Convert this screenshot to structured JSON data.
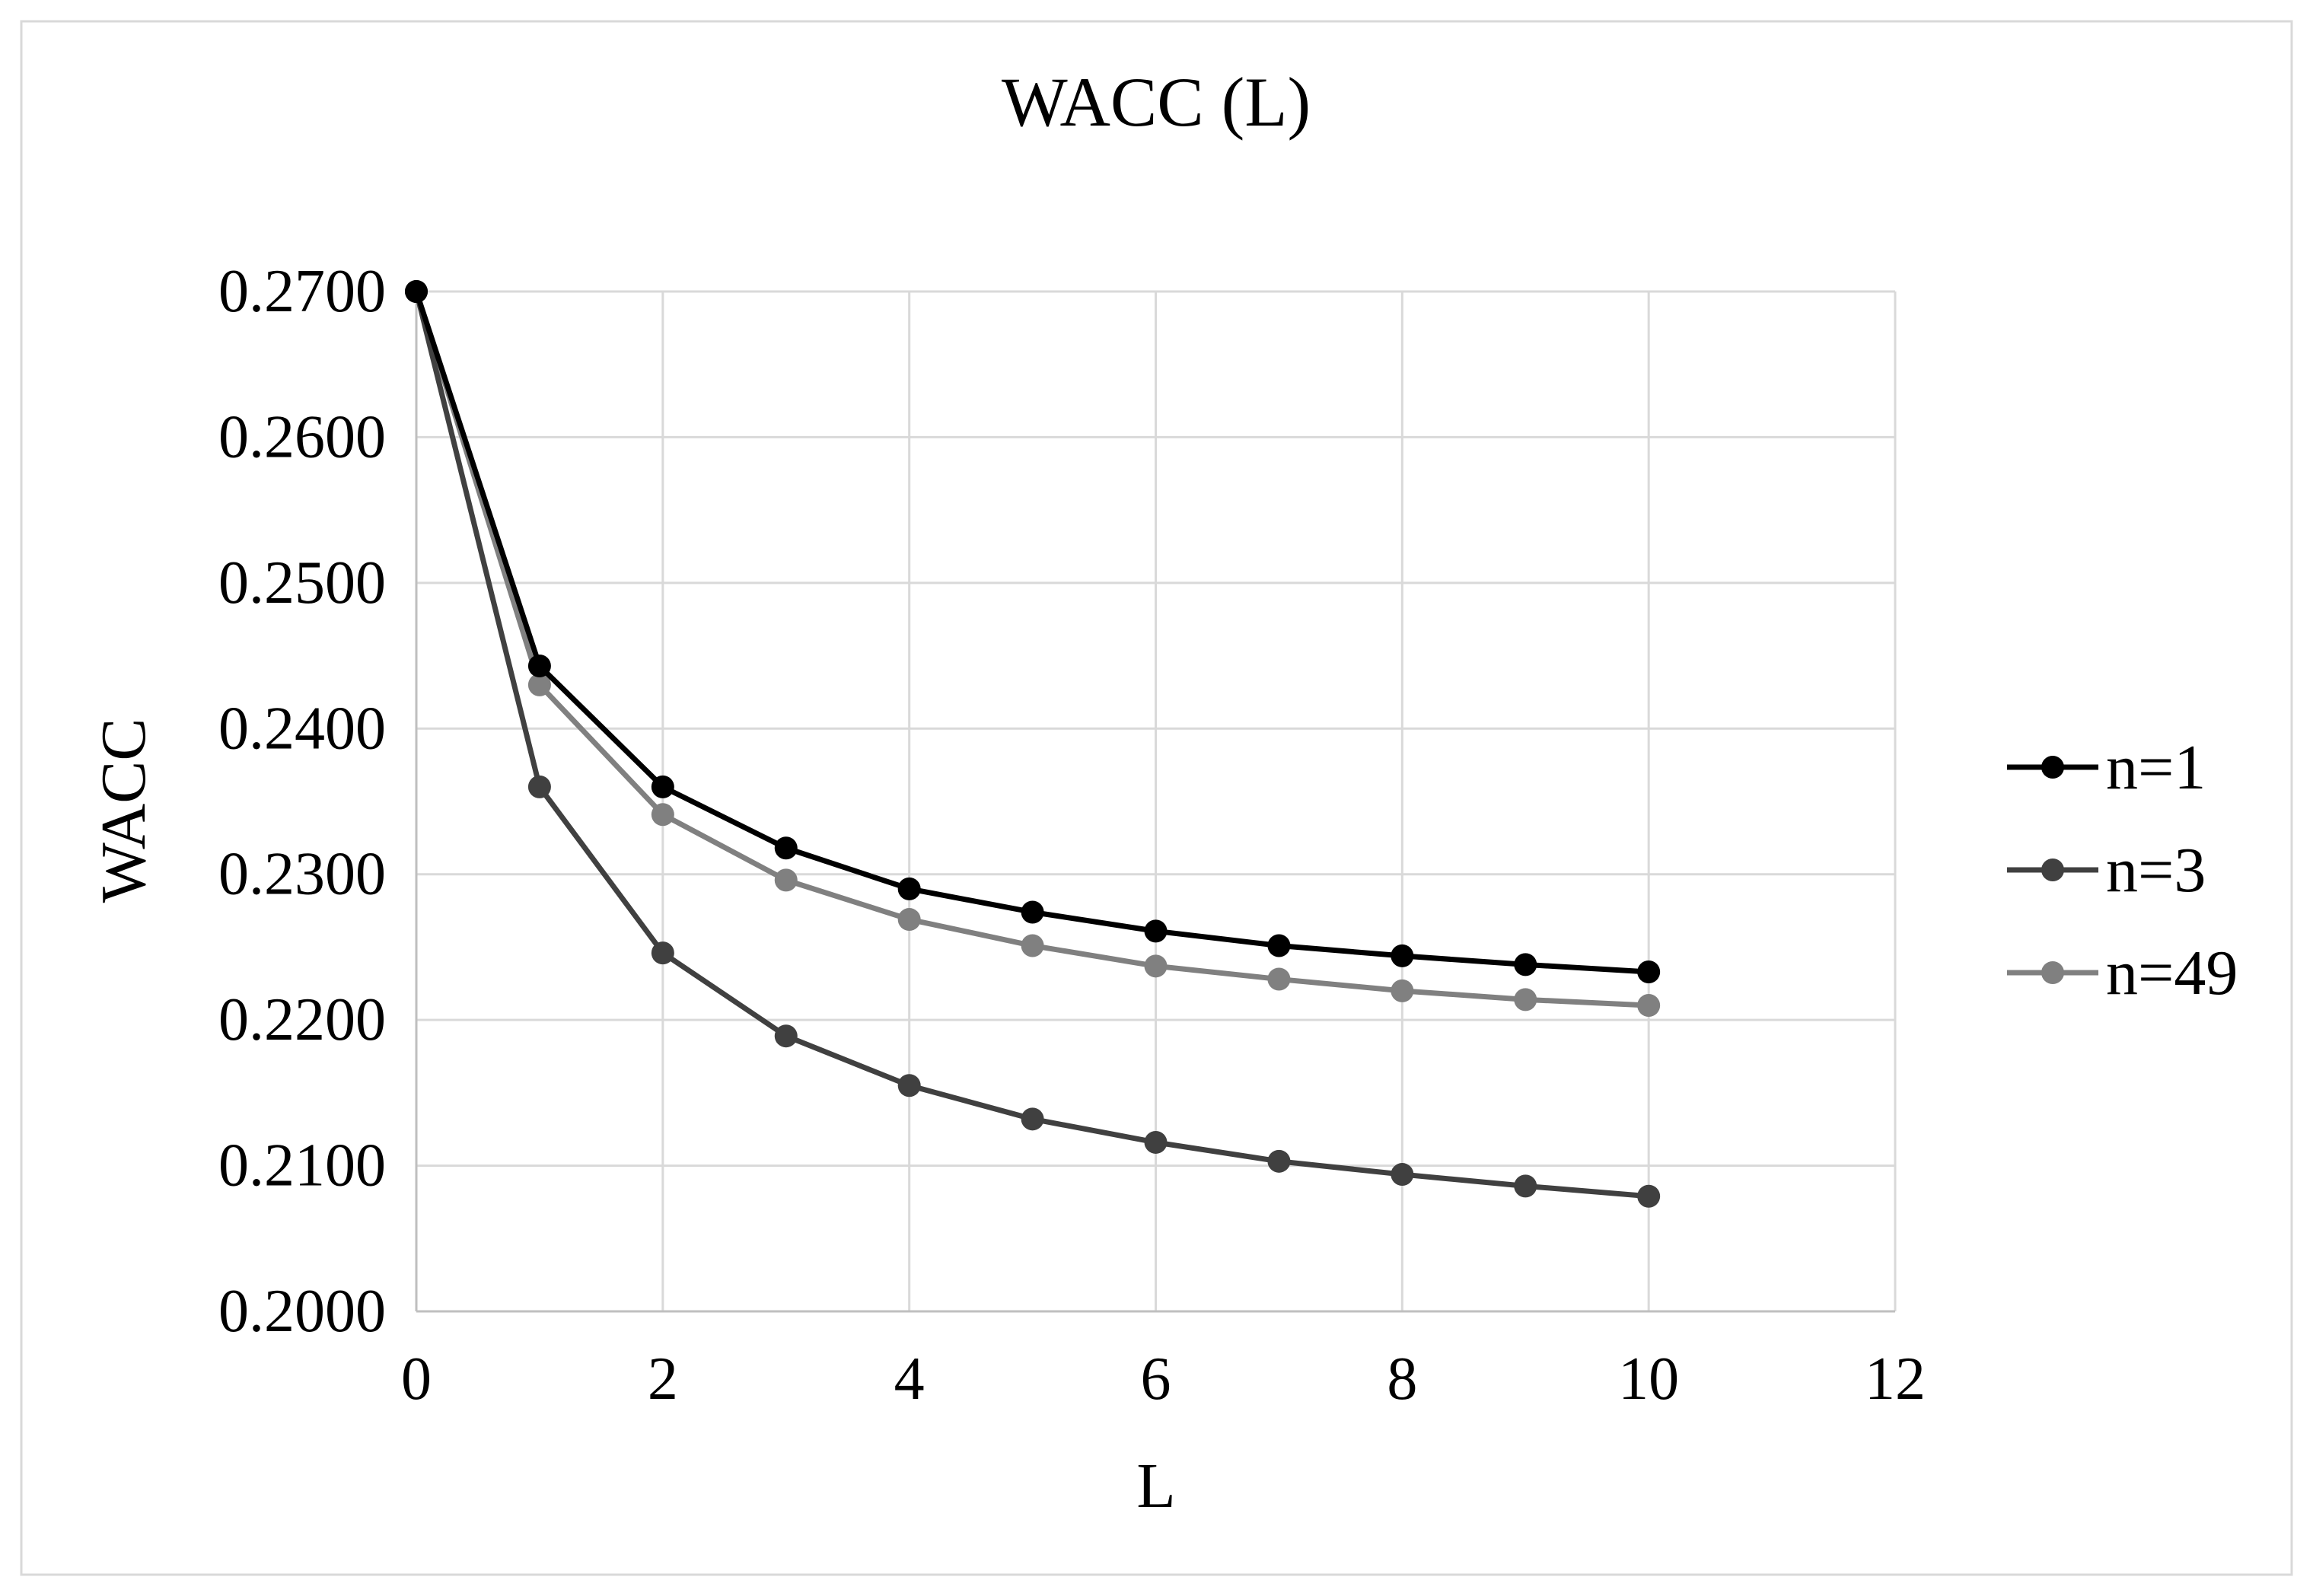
{
  "chart_data": {
    "type": "line",
    "title": "WACC (L)",
    "xlabel": "L",
    "ylabel": "WACC",
    "xlim": [
      0,
      12
    ],
    "ylim": [
      0.2,
      0.27
    ],
    "x_ticks": [
      "0",
      "2",
      "4",
      "6",
      "8",
      "10",
      "12"
    ],
    "y_ticks": [
      "0.2000",
      "0.2100",
      "0.2200",
      "0.2300",
      "0.2400",
      "0.2500",
      "0.2600",
      "0.2700"
    ],
    "grid": true,
    "legend_position": "right",
    "x": [
      0,
      1,
      2,
      3,
      4,
      5,
      6,
      7,
      8,
      9,
      10
    ],
    "series": [
      {
        "name": "n=1",
        "color": "#000000",
        "values": [
          0.27,
          0.2443,
          0.236,
          0.2318,
          0.229,
          0.2274,
          0.2261,
          0.2251,
          0.2244,
          0.2238,
          0.2233
        ]
      },
      {
        "name": "n=3",
        "color": "#404040",
        "values": [
          0.27,
          0.236,
          0.2246,
          0.2189,
          0.2155,
          0.2132,
          0.2116,
          0.2103,
          0.2094,
          0.2086,
          0.2079
        ]
      },
      {
        "name": "n=49",
        "color": "#808080",
        "values": [
          0.27,
          0.243,
          0.2341,
          0.2296,
          0.2269,
          0.2251,
          0.2237,
          0.2228,
          0.222,
          0.2214,
          0.221
        ]
      }
    ]
  }
}
